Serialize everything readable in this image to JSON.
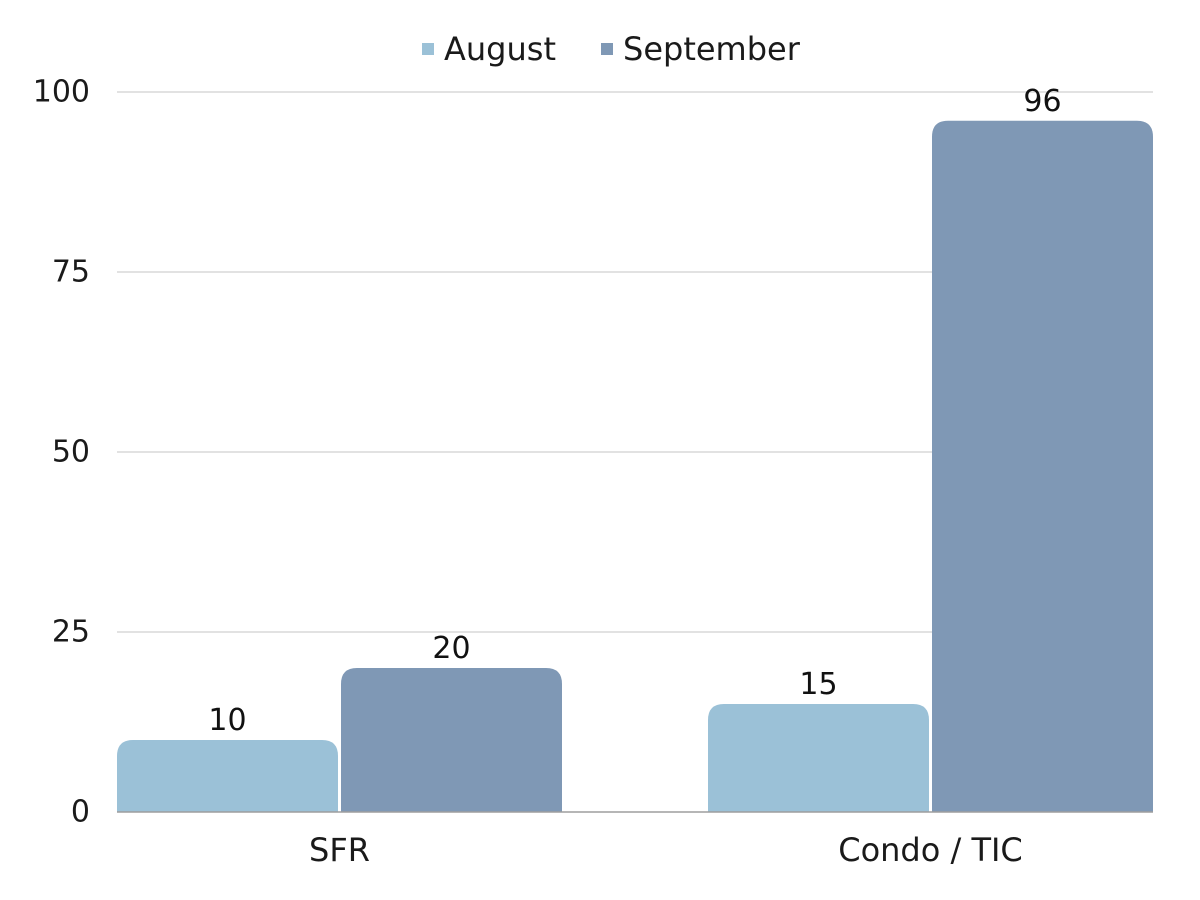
{
  "chart_data": {
    "type": "bar",
    "title": "",
    "xlabel": "",
    "ylabel": "",
    "categories": [
      "SFR",
      "Condo / TIC"
    ],
    "series": [
      {
        "name": "August",
        "values": [
          10,
          15
        ],
        "color": "#9bc1d7"
      },
      {
        "name": "September",
        "values": [
          20,
          96
        ],
        "color": "#7f98b5"
      }
    ],
    "ylim": [
      0,
      100
    ],
    "yticks": [
      0,
      25,
      50,
      75,
      100
    ],
    "ytick_labels": [
      "0",
      "25",
      "50",
      "75",
      "100"
    ],
    "data_labels": [
      [
        "10",
        "15"
      ],
      [
        "20",
        "96"
      ]
    ],
    "grid": true,
    "legend_position": "top-center",
    "colors": {
      "grid": "#d9d9d9",
      "axis": "#9e9e9e"
    }
  }
}
